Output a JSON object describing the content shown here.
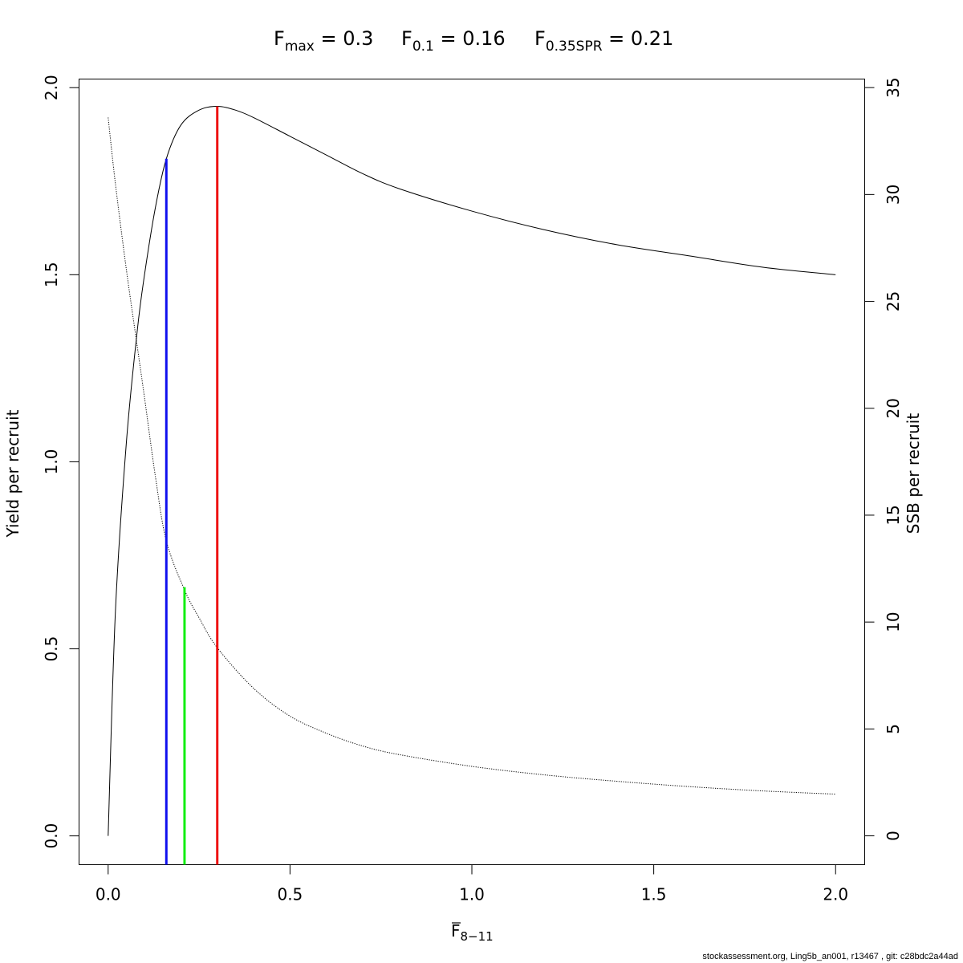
{
  "chart_data": {
    "type": "line",
    "title": {
      "fmax": {
        "base": "F",
        "sub": "max",
        "rest": " = 0.3"
      },
      "f01": {
        "base": "F",
        "sub": "0.1",
        "rest": " = 0.16"
      },
      "fspr": {
        "base": "F",
        "sub": "0.35SPR",
        "rest": " = 0.21"
      }
    },
    "xlabel": {
      "base": "F",
      "sub": "8−11"
    },
    "ylabel_left": "Yield per recruit",
    "ylabel_right": "SSB per recruit",
    "xlim": [
      -0.08,
      2.08
    ],
    "ylim_left": [
      -0.077,
      2.023
    ],
    "ylim_right": [
      -1.35,
      35.4
    ],
    "x_ticks": [
      0.0,
      0.5,
      1.0,
      1.5,
      2.0
    ],
    "x_tick_labels": [
      "0.0",
      "0.5",
      "1.0",
      "1.5",
      "2.0"
    ],
    "y_left_ticks": [
      0.0,
      0.5,
      1.0,
      1.5,
      2.0
    ],
    "y_left_tick_labels": [
      "0.0",
      "0.5",
      "1.0",
      "1.5",
      "2.0"
    ],
    "y_right_ticks": [
      0,
      5,
      10,
      15,
      20,
      25,
      30,
      35
    ],
    "y_right_tick_labels": [
      "0",
      "5",
      "10",
      "15",
      "20",
      "25",
      "30",
      "35"
    ],
    "grid": false,
    "series": [
      {
        "axis": "left",
        "style": "solid",
        "color": "#000000",
        "x": [
          0,
          0.02,
          0.05,
          0.08,
          0.1,
          0.13,
          0.16,
          0.2,
          0.25,
          0.3,
          0.35,
          0.4,
          0.5,
          0.6,
          0.7,
          0.8,
          1.0,
          1.2,
          1.4,
          1.6,
          1.8,
          2.0
        ],
        "y": [
          0,
          0.6,
          1.05,
          1.35,
          1.5,
          1.68,
          1.81,
          1.9,
          1.94,
          1.95,
          1.94,
          1.92,
          1.87,
          1.82,
          1.77,
          1.73,
          1.67,
          1.62,
          1.58,
          1.55,
          1.52,
          1.5
        ]
      },
      {
        "axis": "right",
        "style": "dotted",
        "color": "#000000",
        "x": [
          0,
          0.02,
          0.05,
          0.08,
          0.1,
          0.13,
          0.16,
          0.21,
          0.25,
          0.3,
          0.4,
          0.5,
          0.6,
          0.7,
          0.8,
          1.0,
          1.2,
          1.4,
          1.6,
          1.8,
          2.0
        ],
        "y": [
          33.6,
          30.5,
          26.5,
          22.9,
          20.5,
          16.8,
          13.8,
          11.5,
          10.2,
          8.8,
          6.9,
          5.6,
          4.8,
          4.2,
          3.8,
          3.25,
          2.85,
          2.55,
          2.3,
          2.1,
          1.95
        ]
      }
    ],
    "reference_lines": [
      {
        "name": "Fmax",
        "x": 0.3,
        "y_top_left": 1.95,
        "color": "#ee1111"
      },
      {
        "name": "F0.1",
        "x": 0.16,
        "y_top_left": 1.81,
        "color": "#1010ee"
      },
      {
        "name": "F0.35SPR",
        "x": 0.21,
        "y_top_left": 0.665,
        "color": "#11ee11"
      }
    ]
  },
  "footer": "stockassessment.org, Ling5b_an001, r13467 , git: c28bdc2a44ad"
}
